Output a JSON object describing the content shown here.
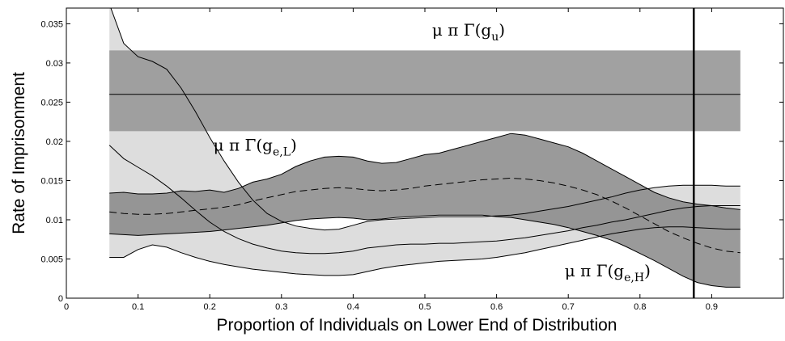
{
  "chart_data": {
    "type": "area",
    "xlabel": "Proportion of Individuals on Lower End of Distribution",
    "ylabel": "Rate of Imprisonment",
    "xlim": [
      0,
      1
    ],
    "ylim": [
      0,
      0.037
    ],
    "x_ticks": [
      "0",
      "0.1",
      "0.2",
      "0.3",
      "0.4",
      "0.5",
      "0.6",
      "0.7",
      "0.8",
      "0.9"
    ],
    "y_ticks": [
      "0",
      "0.005",
      "0.01",
      "0.015",
      "0.02",
      "0.025",
      "0.03",
      "0.035"
    ],
    "grid": false,
    "legend": "none",
    "vertical_marker_x": 0.875,
    "annotations": [
      {
        "main": "μ π Γ(g",
        "sub": "u",
        "close": ")",
        "x": 0.51,
        "y": 0.0335
      },
      {
        "main": "μ π Γ(g",
        "sub": "e,L",
        "close": ")",
        "x": 0.205,
        "y": 0.0188
      },
      {
        "main": "μ π Γ(g",
        "sub": "e,H",
        "close": ")",
        "x": 0.695,
        "y": 0.0028
      }
    ],
    "series": [
      {
        "label": "μ π Γ(g_u)",
        "band_x": [
          0.06,
          0.94
        ],
        "upper": 0.0316,
        "lower": 0.0213,
        "mean": 0.026,
        "color": "#999999"
      },
      {
        "label": "μ π Γ(g_e,L)",
        "x": [
          0.06,
          0.08,
          0.1,
          0.12,
          0.14,
          0.16,
          0.18,
          0.2,
          0.22,
          0.24,
          0.26,
          0.28,
          0.3,
          0.32,
          0.34,
          0.36,
          0.38,
          0.4,
          0.42,
          0.44,
          0.46,
          0.48,
          0.5,
          0.52,
          0.54,
          0.56,
          0.58,
          0.6,
          0.62,
          0.64,
          0.66,
          0.68,
          0.7,
          0.72,
          0.74,
          0.76,
          0.78,
          0.8,
          0.82,
          0.84,
          0.86,
          0.88,
          0.9,
          0.92,
          0.94
        ],
        "upper": [
          0.0134,
          0.0135,
          0.0133,
          0.0133,
          0.0134,
          0.0137,
          0.0136,
          0.0138,
          0.0135,
          0.014,
          0.0148,
          0.0152,
          0.0158,
          0.0168,
          0.0175,
          0.018,
          0.0181,
          0.018,
          0.0175,
          0.0172,
          0.0173,
          0.0178,
          0.0183,
          0.0185,
          0.019,
          0.0195,
          0.02,
          0.0205,
          0.021,
          0.0208,
          0.0203,
          0.0198,
          0.0193,
          0.0185,
          0.0175,
          0.0165,
          0.0155,
          0.0145,
          0.0135,
          0.0128,
          0.0123,
          0.012,
          0.0118,
          0.0115,
          0.0113
        ],
        "mean": [
          0.011,
          0.0108,
          0.0107,
          0.0107,
          0.0108,
          0.011,
          0.0112,
          0.0114,
          0.0116,
          0.0119,
          0.0124,
          0.0128,
          0.0132,
          0.0136,
          0.0138,
          0.014,
          0.0141,
          0.014,
          0.0138,
          0.0137,
          0.0138,
          0.014,
          0.0143,
          0.0145,
          0.0147,
          0.0149,
          0.0151,
          0.0152,
          0.0153,
          0.0152,
          0.015,
          0.0147,
          0.0143,
          0.0138,
          0.0132,
          0.0124,
          0.0115,
          0.0105,
          0.0095,
          0.0085,
          0.0077,
          0.007,
          0.0064,
          0.006,
          0.0058
        ],
        "lower": [
          0.0082,
          0.0081,
          0.008,
          0.0081,
          0.0082,
          0.0083,
          0.0084,
          0.0085,
          0.0087,
          0.0089,
          0.0091,
          0.0093,
          0.0096,
          0.0099,
          0.0101,
          0.0102,
          0.0103,
          0.0102,
          0.01,
          0.0101,
          0.0103,
          0.0104,
          0.0105,
          0.0106,
          0.0106,
          0.0106,
          0.0106,
          0.0104,
          0.0103,
          0.01,
          0.0097,
          0.0094,
          0.009,
          0.0085,
          0.008,
          0.0074,
          0.0066,
          0.0057,
          0.0048,
          0.0038,
          0.0028,
          0.002,
          0.0016,
          0.0014,
          0.0014
        ],
        "color": "#888888"
      },
      {
        "label": "μ π Γ(g_e,H)",
        "x": [
          0.06,
          0.08,
          0.1,
          0.12,
          0.14,
          0.16,
          0.18,
          0.2,
          0.22,
          0.24,
          0.26,
          0.28,
          0.3,
          0.32,
          0.34,
          0.36,
          0.38,
          0.4,
          0.42,
          0.44,
          0.46,
          0.48,
          0.5,
          0.52,
          0.54,
          0.56,
          0.58,
          0.6,
          0.62,
          0.64,
          0.66,
          0.68,
          0.7,
          0.72,
          0.74,
          0.76,
          0.78,
          0.8,
          0.82,
          0.84,
          0.86,
          0.88,
          0.9,
          0.92,
          0.94
        ],
        "upper": [
          0.0375,
          0.0325,
          0.0308,
          0.0302,
          0.0292,
          0.0268,
          0.0238,
          0.0205,
          0.0175,
          0.0148,
          0.0125,
          0.0108,
          0.0098,
          0.0092,
          0.0089,
          0.0087,
          0.0088,
          0.0093,
          0.0098,
          0.01,
          0.0101,
          0.0102,
          0.0103,
          0.0104,
          0.0104,
          0.0104,
          0.0104,
          0.0105,
          0.0106,
          0.0108,
          0.0111,
          0.0114,
          0.0117,
          0.0121,
          0.0125,
          0.0129,
          0.0134,
          0.0138,
          0.0141,
          0.0143,
          0.0144,
          0.0144,
          0.0144,
          0.0143,
          0.0143
        ],
        "mean": [
          0.0195,
          0.0178,
          0.0167,
          0.0156,
          0.0143,
          0.0128,
          0.0112,
          0.0097,
          0.0085,
          0.0076,
          0.0069,
          0.0064,
          0.006,
          0.0058,
          0.0057,
          0.0057,
          0.0058,
          0.006,
          0.0064,
          0.0066,
          0.0068,
          0.0069,
          0.0069,
          0.007,
          0.007,
          0.0071,
          0.0072,
          0.0073,
          0.0075,
          0.0077,
          0.008,
          0.0083,
          0.0086,
          0.009,
          0.0093,
          0.0097,
          0.01,
          0.0104,
          0.0108,
          0.0112,
          0.0115,
          0.0117,
          0.0118,
          0.0118,
          0.0118
        ],
        "lower": [
          0.0052,
          0.0052,
          0.0062,
          0.0068,
          0.0065,
          0.0058,
          0.0052,
          0.0047,
          0.0043,
          0.004,
          0.0037,
          0.0035,
          0.0033,
          0.0031,
          0.003,
          0.0029,
          0.0029,
          0.003,
          0.0034,
          0.0038,
          0.0041,
          0.0043,
          0.0045,
          0.0047,
          0.0048,
          0.0049,
          0.005,
          0.0052,
          0.0055,
          0.0058,
          0.0062,
          0.0066,
          0.007,
          0.0074,
          0.0078,
          0.0082,
          0.0085,
          0.0088,
          0.009,
          0.0091,
          0.0091,
          0.009,
          0.0089,
          0.0088,
          0.0088
        ],
        "color": "#dddddd"
      }
    ]
  }
}
